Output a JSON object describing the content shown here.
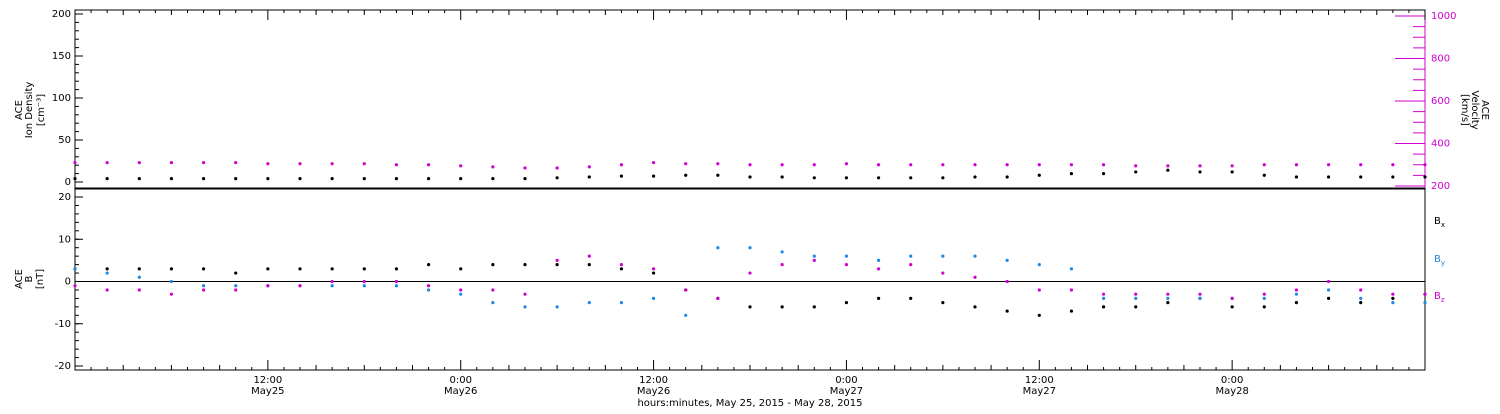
{
  "chart_data": [
    {
      "type": "scatter",
      "panel": "top",
      "ylabel_left": [
        "ACE",
        "Ion Density",
        "[cm⁻³]"
      ],
      "ylabel_right": [
        "ACE",
        "Velocity",
        "[km/s]"
      ],
      "ylim_left": [
        0,
        200
      ],
      "ylim_right": [
        200,
        1000
      ],
      "yticks_left": [
        "0",
        "50",
        "100",
        "150",
        "200"
      ],
      "yticks_right": [
        "200",
        "400",
        "600",
        "800",
        "1000"
      ],
      "xlim_hours": [
        0,
        84
      ],
      "series": [
        {
          "axis": "left",
          "color": "#000000",
          "x": [
            0,
            2,
            4,
            6,
            8,
            10,
            12,
            14,
            16,
            18,
            20,
            22,
            24,
            26,
            28,
            30,
            32,
            34,
            36,
            38,
            40,
            42,
            44,
            46,
            48,
            50,
            52,
            54,
            56,
            58,
            60,
            62,
            64,
            66,
            68,
            70,
            72,
            74,
            76,
            78,
            80,
            82,
            84
          ],
          "y": [
            4,
            4,
            4,
            4,
            4,
            4,
            4,
            4,
            4,
            4,
            4,
            4,
            4,
            4,
            4,
            5,
            6,
            7,
            7,
            8,
            8,
            6,
            6,
            5,
            5,
            5,
            5,
            5,
            6,
            6,
            8,
            10,
            10,
            12,
            14,
            12,
            12,
            8,
            6,
            6,
            6,
            6,
            6
          ]
        },
        {
          "axis": "right",
          "color": "#d000d0",
          "x": [
            0,
            2,
            4,
            6,
            8,
            10,
            12,
            14,
            16,
            18,
            20,
            22,
            24,
            26,
            28,
            30,
            32,
            34,
            36,
            38,
            40,
            42,
            44,
            46,
            48,
            50,
            52,
            54,
            56,
            58,
            60,
            62,
            64,
            66,
            68,
            70,
            72,
            74,
            76,
            78,
            80,
            82,
            84
          ],
          "y": [
            310,
            310,
            310,
            310,
            310,
            310,
            305,
            305,
            305,
            305,
            300,
            300,
            295,
            290,
            285,
            285,
            290,
            300,
            310,
            305,
            305,
            300,
            300,
            300,
            305,
            300,
            300,
            300,
            300,
            300,
            300,
            300,
            300,
            295,
            295,
            295,
            295,
            300,
            300,
            300,
            300,
            300,
            300
          ]
        }
      ]
    },
    {
      "type": "scatter",
      "panel": "bottom",
      "ylabel": [
        "ACE",
        "B",
        "[nT]"
      ],
      "ylim": [
        -20,
        20
      ],
      "yticks": [
        "-20",
        "-10",
        "0",
        "10",
        "20"
      ],
      "xlim_hours": [
        0,
        84
      ],
      "x_tick_labels": [
        {
          "time": "12:00",
          "date": "May25"
        },
        {
          "time": "0:00",
          "date": "May26"
        },
        {
          "time": "12:00",
          "date": "May26"
        },
        {
          "time": "0:00",
          "date": "May27"
        },
        {
          "time": "12:00",
          "date": "May27"
        },
        {
          "time": "0:00",
          "date": "May28"
        }
      ],
      "x_tick_hours": [
        12,
        24,
        36,
        48,
        60,
        72
      ],
      "xlabel": "hours:minutes, May 25, 2015 - May 28, 2015",
      "legend": [
        {
          "label": "B",
          "sub": "x",
          "color": "#000000"
        },
        {
          "label": "B",
          "sub": "y",
          "color": "#1e88e5"
        },
        {
          "label": "B",
          "sub": "z",
          "color": "#d000d0"
        }
      ],
      "series": [
        {
          "name": "Bx",
          "color": "#000000",
          "x": [
            0,
            2,
            4,
            6,
            8,
            10,
            12,
            14,
            16,
            18,
            20,
            22,
            24,
            26,
            28,
            30,
            32,
            34,
            36,
            38,
            40,
            42,
            44,
            46,
            48,
            50,
            52,
            54,
            56,
            58,
            60,
            62,
            64,
            66,
            68,
            70,
            72,
            74,
            76,
            78,
            80,
            82,
            84
          ],
          "y": [
            3,
            3,
            3,
            3,
            3,
            2,
            3,
            3,
            3,
            3,
            3,
            4,
            3,
            4,
            4,
            4,
            4,
            3,
            2,
            -2,
            -4,
            -6,
            -6,
            -6,
            -5,
            -4,
            -4,
            -5,
            -6,
            -7,
            -8,
            -7,
            -6,
            -6,
            -5,
            -4,
            -6,
            -6,
            -5,
            -4,
            -5,
            -4,
            -3
          ]
        },
        {
          "name": "By",
          "color": "#1e88e5",
          "x": [
            0,
            2,
            4,
            6,
            8,
            10,
            12,
            14,
            16,
            18,
            20,
            22,
            24,
            26,
            28,
            30,
            32,
            34,
            36,
            38,
            40,
            42,
            44,
            46,
            48,
            50,
            52,
            54,
            56,
            58,
            60,
            62,
            64,
            66,
            68,
            70,
            72,
            74,
            76,
            78,
            80,
            82,
            84
          ],
          "y": [
            3,
            2,
            1,
            0,
            -1,
            -1,
            -1,
            -1,
            -1,
            -1,
            -1,
            -2,
            -3,
            -5,
            -6,
            -6,
            -5,
            -5,
            -4,
            -8,
            8,
            8,
            7,
            6,
            6,
            5,
            6,
            6,
            6,
            5,
            4,
            3,
            -4,
            -4,
            -4,
            -4,
            -4,
            -4,
            -3,
            -2,
            -4,
            -5,
            -5
          ]
        },
        {
          "name": "Bz",
          "color": "#d000d0",
          "x": [
            0,
            2,
            4,
            6,
            8,
            10,
            12,
            14,
            16,
            18,
            20,
            22,
            24,
            26,
            28,
            30,
            32,
            34,
            36,
            38,
            40,
            42,
            44,
            46,
            48,
            50,
            52,
            54,
            56,
            58,
            60,
            62,
            64,
            66,
            68,
            70,
            72,
            74,
            76,
            78,
            80,
            82,
            84
          ],
          "y": [
            -1,
            -2,
            -2,
            -3,
            -2,
            -2,
            -1,
            -1,
            0,
            0,
            0,
            -1,
            -2,
            -2,
            -3,
            5,
            6,
            4,
            3,
            -2,
            -4,
            2,
            4,
            5,
            4,
            3,
            4,
            2,
            1,
            0,
            -2,
            -2,
            -3,
            -3,
            -3,
            -3,
            -4,
            -3,
            -2,
            0,
            -2,
            -3,
            -3
          ]
        }
      ]
    }
  ]
}
